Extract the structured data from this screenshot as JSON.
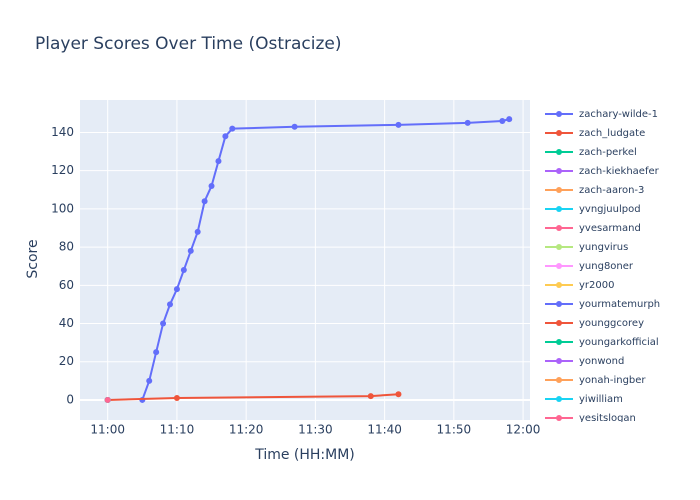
{
  "chart_data": {
    "type": "line",
    "title": "Player Scores Over Time (Ostracize)",
    "x_label": "Time (HH:MM)",
    "y_label": "Score",
    "xlim": [
      "10:56",
      "12:01"
    ],
    "xticks": [
      "11:00",
      "11:10",
      "11:20",
      "11:30",
      "11:40",
      "11:50",
      "12:00"
    ],
    "ylim": [
      -10.5,
      157
    ],
    "yticks": [
      0,
      20,
      40,
      60,
      80,
      100,
      120,
      140
    ],
    "grid": true,
    "series": [
      {
        "name": "zachary-wilde-1",
        "color": "#636efa",
        "x": [
          "11:05",
          "11:06",
          "11:07",
          "11:08",
          "11:09",
          "11:10",
          "11:11",
          "11:12",
          "11:13",
          "11:14",
          "11:15",
          "11:16",
          "11:17",
          "11:18",
          "11:27",
          "11:42",
          "11:52",
          "11:57",
          "11:58"
        ],
        "values": [
          0,
          10,
          25,
          40,
          50,
          58,
          68,
          78,
          88,
          104,
          112,
          125,
          138,
          142,
          143,
          144,
          145,
          146,
          147
        ]
      },
      {
        "name": "zach_ludgate",
        "color": "#EF553B",
        "x": [
          "11:00",
          "11:10",
          "11:38",
          "11:42"
        ],
        "values": [
          0,
          1,
          2,
          3
        ]
      },
      {
        "name": "zach-perkel",
        "color": "#00cc96",
        "x": [
          "11:00"
        ],
        "values": [
          0
        ]
      },
      {
        "name": "zach-kiekhaefer",
        "color": "#ab63fa",
        "x": [
          "11:00"
        ],
        "values": [
          0
        ]
      },
      {
        "name": "zach-aaron-3",
        "color": "#FFA15A",
        "x": [
          "11:00"
        ],
        "values": [
          0
        ]
      },
      {
        "name": "yvngjuulpod",
        "color": "#19d3f3",
        "x": [
          "11:00"
        ],
        "values": [
          0
        ]
      },
      {
        "name": "yvesarmand",
        "color": "#FF6692",
        "x": [
          "11:00"
        ],
        "values": [
          0
        ]
      },
      {
        "name": "yungvirus",
        "color": "#B6E880",
        "x": [
          "11:00"
        ],
        "values": [
          0
        ]
      },
      {
        "name": "yung8oner",
        "color": "#FF97FF",
        "x": [
          "11:00"
        ],
        "values": [
          0
        ]
      },
      {
        "name": "yr2000",
        "color": "#FECB52",
        "x": [
          "11:00"
        ],
        "values": [
          0
        ]
      },
      {
        "name": "yourmatemurph",
        "color": "#636efa",
        "x": [
          "11:00"
        ],
        "values": [
          0
        ]
      },
      {
        "name": "younggcorey",
        "color": "#EF553B",
        "x": [
          "11:00"
        ],
        "values": [
          0
        ]
      },
      {
        "name": "youngarkofficial",
        "color": "#00cc96",
        "x": [
          "11:00"
        ],
        "values": [
          0
        ]
      },
      {
        "name": "yonwond",
        "color": "#ab63fa",
        "x": [
          "11:00"
        ],
        "values": [
          0
        ]
      },
      {
        "name": "yonah-ingber",
        "color": "#FFA15A",
        "x": [
          "11:00"
        ],
        "values": [
          0
        ]
      },
      {
        "name": "yiwilliam",
        "color": "#19d3f3",
        "x": [
          "11:00"
        ],
        "values": [
          0
        ]
      },
      {
        "name": "yesitslogan",
        "color": "#FF6692",
        "x": [
          "11:00"
        ],
        "values": [
          0
        ]
      }
    ]
  }
}
